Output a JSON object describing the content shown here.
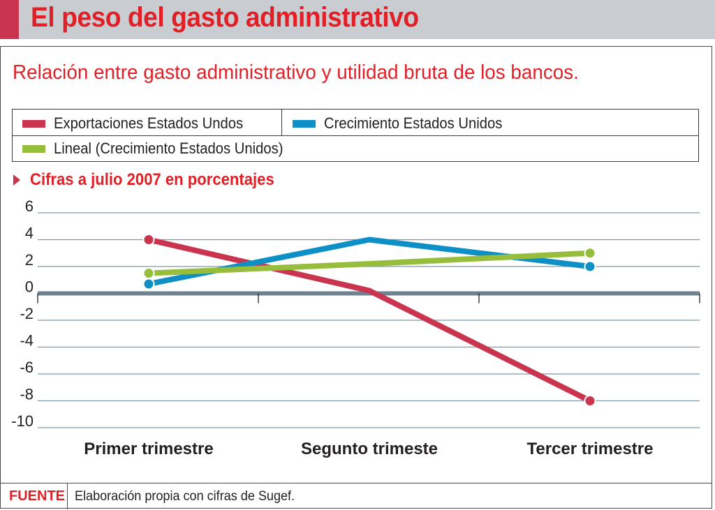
{
  "header": {
    "title": "El peso del gasto administrativo",
    "accent_color": "#c9344f",
    "bar_color": "#c9cdd1"
  },
  "subtitle": "Relación entre gasto administrativo y utilidad bruta de los bancos.",
  "legend": {
    "items": [
      {
        "label": "Exportaciones Estados Undos",
        "color": "#c9344f"
      },
      {
        "label": "Crecimiento Estados Unidos",
        "color": "#0e8fc6"
      },
      {
        "label": "Lineal (Crecimiento Estados Unidos)",
        "color": "#97bd3d"
      }
    ]
  },
  "section_label": "Cifras a julio 2007 en porcentajes",
  "chart_data": {
    "type": "line",
    "title": "El peso del gasto administrativo",
    "categories": [
      "Primer trimestre",
      "Segunto trimeste",
      "Tercer trimestre"
    ],
    "series": [
      {
        "name": "Exportaciones Estados Undos",
        "color": "#c9344f",
        "values": [
          4,
          0.2,
          -8
        ]
      },
      {
        "name": "Crecimiento Estados Unidos",
        "color": "#0e8fc6",
        "values": [
          0.7,
          4,
          2
        ]
      },
      {
        "name": "Lineal (Crecimiento Estados Unidos)",
        "color": "#97bd3d",
        "values": [
          1.5,
          2.2,
          3
        ]
      }
    ],
    "ylim": [
      -10,
      6
    ],
    "yticks": [
      6,
      4,
      2,
      0,
      -2,
      -4,
      -6,
      -8,
      -10
    ],
    "xlabel": "",
    "ylabel": "",
    "grid": true
  },
  "footer": {
    "label": "FUENTE",
    "text": "Elaboración propia con cifras de Sugef."
  }
}
